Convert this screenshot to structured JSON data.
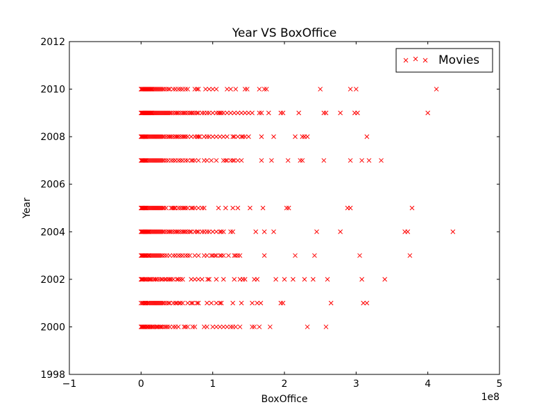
{
  "chart_data": {
    "type": "scatter",
    "title": "Year VS BoxOffice",
    "xlabel": "BoxOffice",
    "ylabel": "Year",
    "x_offset_label": "1e8",
    "xlim": [
      -1,
      5
    ],
    "ylim": [
      1998,
      2012
    ],
    "x_unit_multiplier": 100000000,
    "x_ticks": [
      -1,
      0,
      1,
      2,
      3,
      4,
      5
    ],
    "x_tick_labels": [
      "−1",
      "0",
      "1",
      "2",
      "3",
      "4",
      "5"
    ],
    "y_ticks": [
      1998,
      2000,
      2002,
      2004,
      2006,
      2008,
      2010,
      2012
    ],
    "y_tick_labels": [
      "1998",
      "2000",
      "2002",
      "2004",
      "2006",
      "2008",
      "2010",
      "2012"
    ],
    "grid": false,
    "legend": {
      "placement": "top-right",
      "entries": [
        "Movies"
      ]
    },
    "marker": "x",
    "color": "#ff0000",
    "series": [
      {
        "name": "Movies",
        "points": {
          "2000": [
            0.0,
            0.01,
            0.02,
            0.03,
            0.04,
            0.05,
            0.06,
            0.08,
            0.09,
            0.1,
            0.12,
            0.13,
            0.15,
            0.16,
            0.18,
            0.2,
            0.22,
            0.23,
            0.25,
            0.27,
            0.28,
            0.3,
            0.33,
            0.35,
            0.37,
            0.4,
            0.45,
            0.48,
            0.52,
            0.6,
            0.62,
            0.65,
            0.72,
            0.75,
            0.88,
            0.92,
            1.0,
            1.05,
            1.1,
            1.15,
            1.2,
            1.25,
            1.28,
            1.32,
            1.38,
            1.55,
            1.58,
            1.65,
            1.8,
            2.32,
            2.58
          ],
          "2001": [
            0.0,
            0.02,
            0.03,
            0.05,
            0.06,
            0.07,
            0.09,
            0.1,
            0.12,
            0.14,
            0.16,
            0.18,
            0.2,
            0.22,
            0.24,
            0.26,
            0.28,
            0.3,
            0.32,
            0.35,
            0.38,
            0.4,
            0.45,
            0.48,
            0.5,
            0.53,
            0.55,
            0.58,
            0.65,
            0.7,
            0.72,
            0.78,
            0.8,
            0.92,
            0.98,
            1.05,
            1.1,
            1.12,
            1.28,
            1.4,
            1.55,
            1.62,
            1.67,
            1.95,
            1.98,
            2.65,
            3.1,
            3.15
          ],
          "2002": [
            0.0,
            0.01,
            0.02,
            0.03,
            0.05,
            0.06,
            0.08,
            0.1,
            0.12,
            0.13,
            0.15,
            0.18,
            0.2,
            0.22,
            0.25,
            0.28,
            0.3,
            0.33,
            0.35,
            0.38,
            0.4,
            0.42,
            0.45,
            0.5,
            0.52,
            0.55,
            0.58,
            0.7,
            0.75,
            0.8,
            0.85,
            0.93,
            0.95,
            1.05,
            1.15,
            1.3,
            1.38,
            1.42,
            1.45,
            1.58,
            1.62,
            1.88,
            2.0,
            2.12,
            2.28,
            2.4,
            2.6,
            3.08,
            3.4
          ],
          "2003": [
            0.0,
            0.01,
            0.02,
            0.03,
            0.04,
            0.05,
            0.06,
            0.07,
            0.08,
            0.1,
            0.11,
            0.12,
            0.14,
            0.16,
            0.18,
            0.2,
            0.22,
            0.24,
            0.26,
            0.28,
            0.3,
            0.33,
            0.36,
            0.4,
            0.45,
            0.48,
            0.52,
            0.55,
            0.58,
            0.62,
            0.65,
            0.68,
            0.75,
            0.8,
            0.88,
            0.92,
            0.98,
            1.0,
            1.03,
            1.05,
            1.1,
            1.12,
            1.15,
            1.22,
            1.3,
            1.32,
            1.35,
            1.38,
            1.72,
            2.15,
            2.42,
            3.05,
            3.75
          ],
          "2004": [
            0.0,
            0.01,
            0.02,
            0.03,
            0.04,
            0.05,
            0.06,
            0.07,
            0.08,
            0.09,
            0.1,
            0.11,
            0.12,
            0.14,
            0.16,
            0.18,
            0.2,
            0.22,
            0.24,
            0.26,
            0.28,
            0.3,
            0.32,
            0.35,
            0.38,
            0.4,
            0.42,
            0.45,
            0.48,
            0.5,
            0.52,
            0.55,
            0.58,
            0.6,
            0.62,
            0.65,
            0.68,
            0.7,
            0.75,
            0.78,
            0.8,
            0.85,
            0.88,
            0.92,
            0.95,
            1.0,
            1.05,
            1.1,
            1.12,
            1.15,
            1.25,
            1.28,
            1.6,
            1.72,
            1.85,
            2.45,
            2.78,
            3.68,
            3.72,
            4.35
          ],
          "2005": [
            0.0,
            0.01,
            0.02,
            0.03,
            0.04,
            0.05,
            0.06,
            0.07,
            0.08,
            0.1,
            0.12,
            0.14,
            0.16,
            0.18,
            0.2,
            0.22,
            0.24,
            0.26,
            0.28,
            0.3,
            0.32,
            0.35,
            0.42,
            0.44,
            0.46,
            0.48,
            0.52,
            0.55,
            0.58,
            0.6,
            0.62,
            0.65,
            0.7,
            0.72,
            0.75,
            0.8,
            0.85,
            0.88,
            1.08,
            1.18,
            1.28,
            1.35,
            1.52,
            1.7,
            2.03,
            2.06,
            2.88,
            2.92,
            3.78
          ],
          "2007": [
            0.0,
            0.01,
            0.02,
            0.03,
            0.04,
            0.05,
            0.06,
            0.07,
            0.08,
            0.1,
            0.12,
            0.14,
            0.16,
            0.18,
            0.2,
            0.22,
            0.24,
            0.26,
            0.28,
            0.3,
            0.32,
            0.35,
            0.38,
            0.42,
            0.45,
            0.48,
            0.52,
            0.55,
            0.58,
            0.62,
            0.65,
            0.7,
            0.72,
            0.75,
            0.8,
            0.88,
            0.92,
            0.98,
            1.05,
            1.15,
            1.18,
            1.2,
            1.25,
            1.28,
            1.3,
            1.35,
            1.4,
            1.68,
            1.82,
            2.05,
            2.22,
            2.25,
            2.55,
            2.92,
            3.08,
            3.18,
            3.35
          ],
          "2008": [
            0.0,
            0.01,
            0.02,
            0.03,
            0.04,
            0.05,
            0.06,
            0.07,
            0.08,
            0.1,
            0.12,
            0.14,
            0.16,
            0.18,
            0.2,
            0.22,
            0.24,
            0.26,
            0.28,
            0.3,
            0.32,
            0.35,
            0.38,
            0.4,
            0.42,
            0.45,
            0.48,
            0.5,
            0.52,
            0.55,
            0.58,
            0.6,
            0.62,
            0.65,
            0.7,
            0.75,
            0.78,
            0.8,
            0.82,
            0.88,
            0.92,
            0.95,
            1.0,
            1.05,
            1.1,
            1.15,
            1.2,
            1.28,
            1.3,
            1.35,
            1.4,
            1.42,
            1.45,
            1.5,
            1.68,
            1.85,
            2.15,
            2.25,
            2.28,
            2.32,
            3.15
          ],
          "2009": [
            0.0,
            0.01,
            0.02,
            0.03,
            0.04,
            0.05,
            0.06,
            0.07,
            0.08,
            0.09,
            0.1,
            0.11,
            0.12,
            0.13,
            0.14,
            0.15,
            0.16,
            0.18,
            0.2,
            0.22,
            0.24,
            0.26,
            0.28,
            0.3,
            0.32,
            0.34,
            0.36,
            0.38,
            0.4,
            0.42,
            0.45,
            0.48,
            0.5,
            0.52,
            0.55,
            0.58,
            0.6,
            0.62,
            0.65,
            0.68,
            0.7,
            0.72,
            0.75,
            0.78,
            0.8,
            0.85,
            0.88,
            0.92,
            0.95,
            1.0,
            1.05,
            1.08,
            1.1,
            1.12,
            1.15,
            1.2,
            1.25,
            1.3,
            1.35,
            1.4,
            1.45,
            1.5,
            1.55,
            1.65,
            1.68,
            1.78,
            1.95,
            1.98,
            2.2,
            2.55,
            2.58,
            2.78,
            2.98,
            3.02,
            4.0
          ],
          "2010": [
            0.0,
            0.01,
            0.02,
            0.03,
            0.04,
            0.05,
            0.06,
            0.07,
            0.08,
            0.09,
            0.1,
            0.11,
            0.12,
            0.13,
            0.14,
            0.15,
            0.16,
            0.18,
            0.2,
            0.22,
            0.24,
            0.26,
            0.28,
            0.3,
            0.32,
            0.35,
            0.38,
            0.4,
            0.45,
            0.48,
            0.52,
            0.55,
            0.58,
            0.62,
            0.65,
            0.75,
            0.78,
            0.8,
            0.9,
            0.95,
            1.0,
            1.05,
            1.2,
            1.25,
            1.32,
            1.45,
            1.48,
            1.65,
            1.72,
            1.75,
            2.5,
            2.92,
            3.0,
            4.12
          ]
        }
      }
    ]
  }
}
